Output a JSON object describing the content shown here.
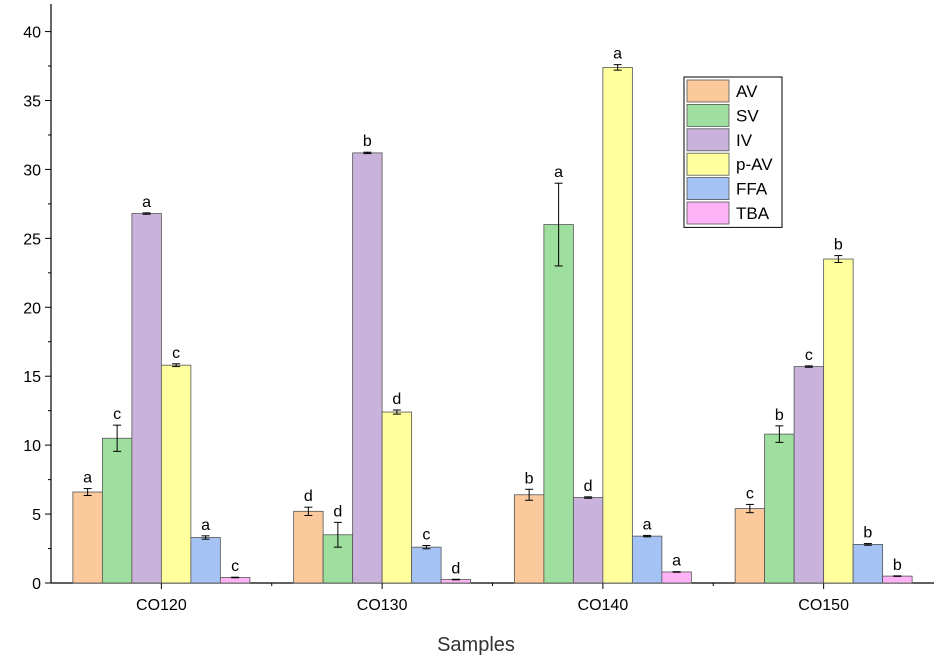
{
  "chart_data": {
    "type": "bar",
    "title": "",
    "xlabel": "Samples",
    "ylabel": "",
    "ylim": [
      0,
      42
    ],
    "yticks": [
      0,
      5,
      10,
      15,
      20,
      25,
      30,
      35,
      40
    ],
    "categories": [
      "CO120",
      "CO130",
      "CO140",
      "CO150"
    ],
    "legend_position": "top-right",
    "series": [
      {
        "name": "AV",
        "color": "#fbc99c",
        "values": [
          6.6,
          5.2,
          6.4,
          5.4
        ],
        "errors": [
          0.25,
          0.3,
          0.4,
          0.3
        ],
        "labels": [
          "a",
          "d",
          "b",
          "c"
        ]
      },
      {
        "name": "SV",
        "color": "#9ede9e",
        "values": [
          10.5,
          3.5,
          26.0,
          10.8
        ],
        "errors": [
          0.95,
          0.9,
          3.0,
          0.6
        ],
        "labels": [
          "c",
          "d",
          "a",
          "b"
        ]
      },
      {
        "name": "IV",
        "color": "#c9b3dc",
        "values": [
          26.8,
          31.2,
          6.2,
          15.7
        ],
        "errors": [
          0.05,
          0.05,
          0.05,
          0.05
        ],
        "labels": [
          "a",
          "b",
          "d",
          "c"
        ]
      },
      {
        "name": "p-AV",
        "color": "#ffff9e",
        "values": [
          15.8,
          12.4,
          37.4,
          23.5
        ],
        "errors": [
          0.1,
          0.15,
          0.2,
          0.25
        ],
        "labels": [
          "c",
          "d",
          "a",
          "b"
        ]
      },
      {
        "name": "FFA",
        "color": "#a4c2f4",
        "values": [
          3.3,
          2.6,
          3.4,
          2.8
        ],
        "errors": [
          0.12,
          0.12,
          0.05,
          0.06
        ],
        "labels": [
          "a",
          "c",
          "a",
          "b"
        ]
      },
      {
        "name": "TBA",
        "color": "#ffb3f7",
        "values": [
          0.4,
          0.25,
          0.8,
          0.5
        ],
        "errors": [
          0.02,
          0.02,
          0.02,
          0.02
        ],
        "labels": [
          "c",
          "d",
          "a",
          "b"
        ]
      }
    ]
  }
}
